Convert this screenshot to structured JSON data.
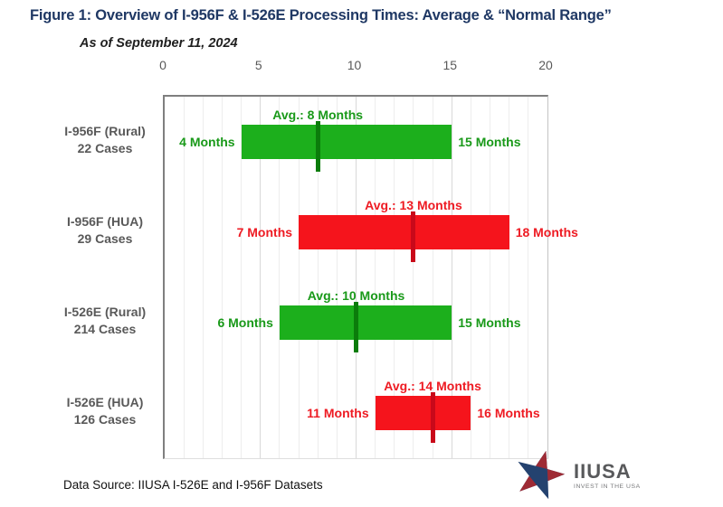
{
  "header": {
    "title": "Figure 1: Overview of I-956F & I-526E Processing Times: Average & “Normal Range”",
    "as_of": "As of September 11, 2024"
  },
  "chart_data": {
    "type": "bar",
    "orientation": "horizontal",
    "unit": "Months",
    "x_axis": {
      "min": 0,
      "max": 20,
      "ticks": [
        0,
        5,
        10,
        15,
        20
      ],
      "minor_gridline_step": 1,
      "grid": true
    },
    "rows": [
      {
        "label": "I-956F (Rural)",
        "cases": "22 Cases",
        "range_min": 4,
        "range_max": 15,
        "avg": 8,
        "color_key": "green",
        "min_label": "4 Months",
        "max_label": "15 Months",
        "avg_label": "Avg.: 8 Months"
      },
      {
        "label": "I-956F (HUA)",
        "cases": "29 Cases",
        "range_min": 7,
        "range_max": 18,
        "avg": 13,
        "color_key": "red",
        "min_label": "7 Months",
        "max_label": "18 Months",
        "avg_label": "Avg.: 13 Months"
      },
      {
        "label": "I-526E (Rural)",
        "cases": "214 Cases",
        "range_min": 6,
        "range_max": 15,
        "avg": 10,
        "color_key": "green",
        "min_label": "6 Months",
        "max_label": "15 Months",
        "avg_label": "Avg.: 10 Months"
      },
      {
        "label": "I-526E (HUA)",
        "cases": "126 Cases",
        "range_min": 11,
        "range_max": 16,
        "avg": 14,
        "color_key": "red",
        "min_label": "11 Months",
        "max_label": "16 Months",
        "avg_label": "Avg.: 14 Months"
      }
    ],
    "colors": {
      "green": {
        "bar": "#1caf1c",
        "line": "#0b7c0b",
        "text": "#199919"
      },
      "red": {
        "bar": "#f5141c",
        "line": "#c9091a",
        "text": "#ee1b23"
      },
      "title": "#1f3864",
      "axis_text": "#595959",
      "row_label_text": "#595959"
    }
  },
  "footer": {
    "data_source": "Data Source: IIUSA I-526E and I-956F Datasets",
    "logo": {
      "name": "IIUSA",
      "tagline": "INVEST IN THE USA",
      "navy": "#24426f",
      "red": "#9e2b35"
    }
  }
}
